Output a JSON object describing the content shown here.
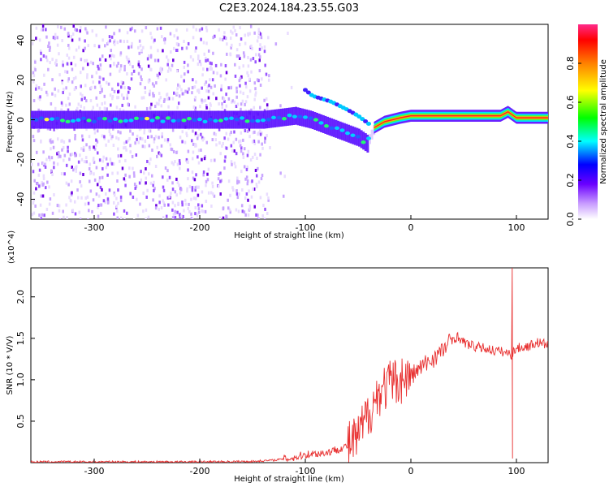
{
  "title": "C2E3.2024.184.23.55.G03",
  "colors": {
    "snr_line": "#e83030",
    "frame": "#000000"
  },
  "chart_data": [
    {
      "type": "heatmap",
      "xlabel": "Height of straight line (km)",
      "ylabel": "Frequency (Hz)",
      "xlim": [
        -360,
        130
      ],
      "ylim": [
        -50,
        48
      ],
      "xticks": [
        -300,
        -200,
        -100,
        0,
        100
      ],
      "yticks": [
        -40,
        -20,
        0,
        20,
        40
      ],
      "colorbar": {
        "label": "Normalized spectral amplitude",
        "range": [
          0,
          1
        ],
        "ticks": [
          "0.0",
          "0.2",
          "0.4",
          "0.6",
          "0.8"
        ],
        "colormap": "rainbow"
      },
      "ridge": [
        {
          "x": -360,
          "y": 0
        },
        {
          "x": -140,
          "y": 0
        },
        {
          "x": -125,
          "y": 1
        },
        {
          "x": -110,
          "y": 2
        },
        {
          "x": -95,
          "y": 0
        },
        {
          "x": -80,
          "y": -3
        },
        {
          "x": -65,
          "y": -6
        },
        {
          "x": -50,
          "y": -9
        },
        {
          "x": -42,
          "y": -12
        },
        {
          "x": -35,
          "y": -4
        },
        {
          "x": -25,
          "y": -1
        },
        {
          "x": -10,
          "y": 1
        },
        {
          "x": 0,
          "y": 2
        },
        {
          "x": 50,
          "y": 2
        },
        {
          "x": 85,
          "y": 2
        },
        {
          "x": 92,
          "y": 4
        },
        {
          "x": 100,
          "y": 1
        },
        {
          "x": 130,
          "y": 1
        }
      ],
      "branch": [
        {
          "x": -100,
          "y": 15
        },
        {
          "x": -93,
          "y": 12
        },
        {
          "x": -75,
          "y": 9
        },
        {
          "x": -60,
          "y": 5
        },
        {
          "x": -50,
          "y": 2
        },
        {
          "x": -40,
          "y": -2
        }
      ]
    },
    {
      "type": "line",
      "xlabel": "Height of straight line (km)",
      "ylabel": "SNR (10 * V/V)",
      "ylabel_exponent": "(x10^4)",
      "xlim": [
        -360,
        130
      ],
      "ylim": [
        0,
        2.35
      ],
      "xticks": [
        -300,
        -200,
        -100,
        0,
        100
      ],
      "yticks": [
        "0.5",
        "1.0",
        "1.5",
        "2.0"
      ],
      "series": [
        {
          "x": [
            -360,
            -300,
            -200,
            -150,
            -130,
            -110,
            -100,
            -80,
            -60,
            -50,
            -40,
            -30,
            -25,
            -20,
            -10,
            0,
            10,
            20,
            30,
            40,
            45,
            50,
            60,
            70,
            80,
            90,
            95,
            100,
            110,
            120,
            130
          ],
          "y": [
            0.01,
            0.01,
            0.01,
            0.015,
            0.03,
            0.06,
            0.1,
            0.12,
            0.2,
            0.3,
            0.6,
            0.85,
            0.9,
            0.95,
            1.0,
            1.05,
            1.15,
            1.25,
            1.35,
            1.5,
            1.52,
            1.45,
            1.4,
            1.38,
            1.35,
            1.33,
            1.3,
            1.38,
            1.4,
            1.45,
            1.42
          ]
        }
      ],
      "spike": {
        "x": 96,
        "y_high": 2.35,
        "y_low": 0.05
      }
    }
  ]
}
